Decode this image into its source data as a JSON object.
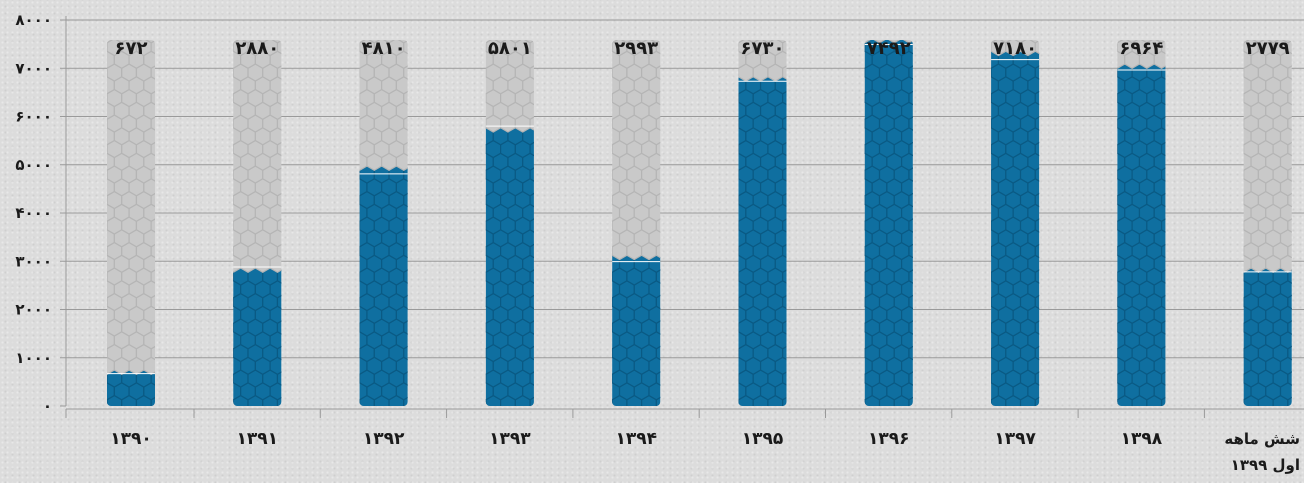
{
  "chart_data": {
    "type": "bar",
    "title": "",
    "xlabel": "",
    "ylabel": "",
    "ylim": [
      0,
      8000
    ],
    "y_ticks": [
      0,
      1000,
      2000,
      3000,
      4000,
      5000,
      6000,
      7000,
      8000
    ],
    "y_tick_labels": [
      "۰",
      "۱۰۰۰",
      "۲۰۰۰",
      "۳۰۰۰",
      "۴۰۰۰",
      "۵۰۰۰",
      "۶۰۰۰",
      "۷۰۰۰",
      "۸۰۰۰"
    ],
    "grid": true,
    "categories": [
      "۱۳۹۰",
      "۱۳۹۱",
      "۱۳۹۲",
      "۱۳۹۳",
      "۱۳۹۴",
      "۱۳۹۵",
      "۱۳۹۶",
      "۱۳۹۷",
      "۱۳۹۸",
      "شش ماهه اول ۱۳۹۹"
    ],
    "category_label_lines": [
      [
        "۱۳۹۰"
      ],
      [
        "۱۳۹۱"
      ],
      [
        "۱۳۹۲"
      ],
      [
        "۱۳۹۳"
      ],
      [
        "۱۳۹۴"
      ],
      [
        "۱۳۹۵"
      ],
      [
        "۱۳۹۶"
      ],
      [
        "۱۳۹۷"
      ],
      [
        "۱۳۹۸"
      ],
      [
        "شش ماهه",
        "اول ۱۳۹۹"
      ]
    ],
    "values": [
      672,
      2880,
      4810,
      5801,
      2993,
      6730,
      7492,
      7180,
      6964,
      2779
    ],
    "value_labels": [
      "۶۷۲",
      "۲۸۸۰",
      "۴۸۱۰",
      "۵۸۰۱",
      "۲۹۹۳",
      "۶۷۳۰",
      "۷۴۹۲",
      "۷۱۸۰",
      "۶۹۶۴",
      "۲۷۷۹"
    ],
    "colors": {
      "filled": "#0f6fa0",
      "empty": "#c9c9c9",
      "grid": "#9a9a9a",
      "text": "#1a1a1a"
    }
  }
}
